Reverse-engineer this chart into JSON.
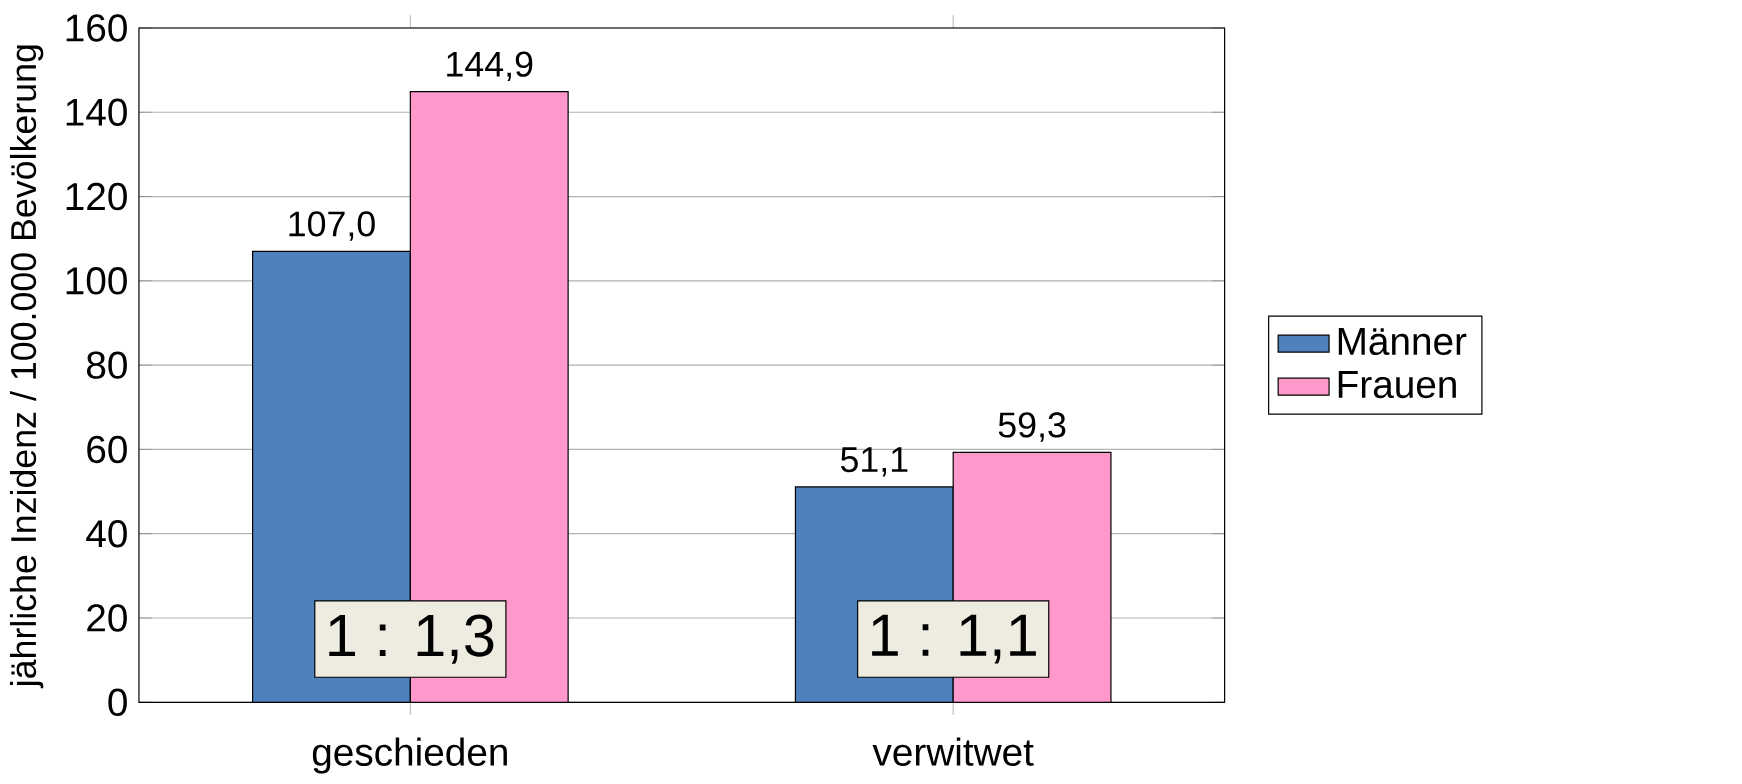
{
  "chart_data": {
    "type": "bar",
    "ylabel": "jährliche Inzidenz / 100.000 Bevölkerung",
    "categories": [
      "geschieden",
      "verwitwet"
    ],
    "series": [
      {
        "name": "Männer",
        "color": "#4f81bd",
        "values": [
          107.0,
          51.1
        ],
        "value_labels": [
          "107,0",
          "51,1"
        ]
      },
      {
        "name": "Frauen",
        "color": "#ff99cc",
        "values": [
          144.9,
          59.3
        ],
        "value_labels": [
          "144,9",
          "59,3"
        ]
      }
    ],
    "ylim": [
      0,
      160
    ],
    "yticks": [
      0,
      20,
      40,
      60,
      80,
      100,
      120,
      140,
      160
    ],
    "grid": "y",
    "legend": "right",
    "annotations": [
      "1 : 1,3",
      "1 : 1,1"
    ]
  }
}
